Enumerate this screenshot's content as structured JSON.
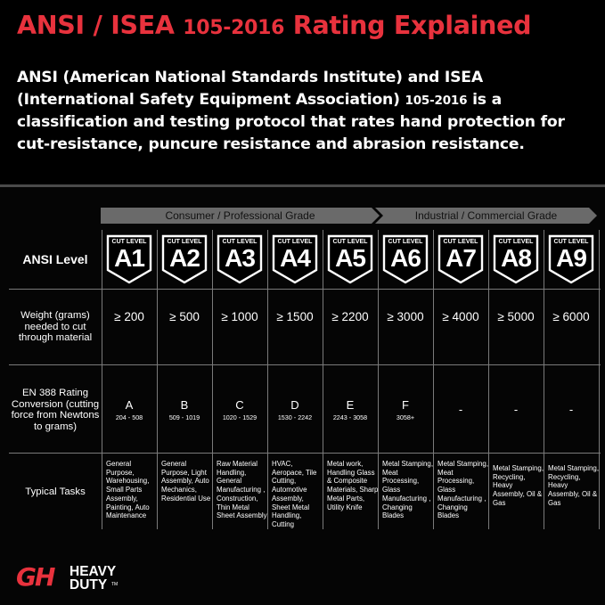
{
  "header": {
    "title_pre": "ANSI / ISEA ",
    "title_year": "105-2016",
    "title_post": " Rating Explained",
    "intro_pre": "ANSI (American National Standards Institute) and ISEA (International Safety Equipment Association) ",
    "intro_year": "105-2016",
    "intro_post": " is a classification and testing protocol that rates hand protection for cut-resistance, puncure resistance and abrasion resistance."
  },
  "grades": {
    "consumer": "Consumer / Professional Grade",
    "industrial": "Industrial / Commercial Grade"
  },
  "rows": {
    "ansi": "ANSI Level",
    "weight": "Weight (grams) needed to cut through material",
    "en388": "EN 388 Rating Conversion (cutting force from Newtons to grams)",
    "tasks": "Typical Tasks"
  },
  "badge_caption": "CUT LEVEL",
  "levels": [
    {
      "level": "A1",
      "weight": "≥ 200",
      "en_grade": "A",
      "en_range": "204 - 508",
      "tasks": "General Purpose, Warehousing, Small Parts Assembly, Painting, Auto Maintenance"
    },
    {
      "level": "A2",
      "weight": "≥ 500",
      "en_grade": "B",
      "en_range": "509 - 1019",
      "tasks": "General Purpose, Light Assembly, Auto Mechanics, Residential Use"
    },
    {
      "level": "A3",
      "weight": "≥ 1000",
      "en_grade": "C",
      "en_range": "1020 - 1529",
      "tasks": "Raw Material Handling, General Manufacturing , Construction, Thin Metal Sheet Assembly"
    },
    {
      "level": "A4",
      "weight": "≥ 1500",
      "en_grade": "D",
      "en_range": "1530 - 2242",
      "tasks": "HVAC, Aeropace, Tile Cutting, Automotive Assembly, Sheet Metal Handling, Cutting"
    },
    {
      "level": "A5",
      "weight": "≥ 2200",
      "en_grade": "E",
      "en_range": "2243 - 3058",
      "tasks": "Metal work, Handling Glass & Composite Materials, Sharp Metal Parts, Utility Knife"
    },
    {
      "level": "A6",
      "weight": "≥ 3000",
      "en_grade": "F",
      "en_range": "3058+",
      "tasks": "Metal Stamping, Meat Processing, Glass Manufacturing , Changing Blades"
    },
    {
      "level": "A7",
      "weight": "≥ 4000",
      "en_grade": "-",
      "en_range": "",
      "tasks": "Metal Stamping, Meat Processing, Glass Manufacturing , Changing Blades"
    },
    {
      "level": "A8",
      "weight": "≥ 5000",
      "en_grade": "-",
      "en_range": "",
      "tasks": "Metal Stamping, Recycling, Heavy Assembly, Oil & Gas"
    },
    {
      "level": "A9",
      "weight": "≥ 6000",
      "en_grade": "-",
      "en_range": "",
      "tasks": "Metal Stamping, Recycling, Heavy Assembly, Oil & Gas"
    }
  ],
  "logo": {
    "mark": "GH",
    "line1": "HEAVY",
    "line2": "DUTY",
    "tm": "TM"
  },
  "colors": {
    "accent_red": "#e8323d",
    "background": "#000000",
    "grade_arrow": "#6a6a6a",
    "grid_lines": "#7a7a7a"
  }
}
